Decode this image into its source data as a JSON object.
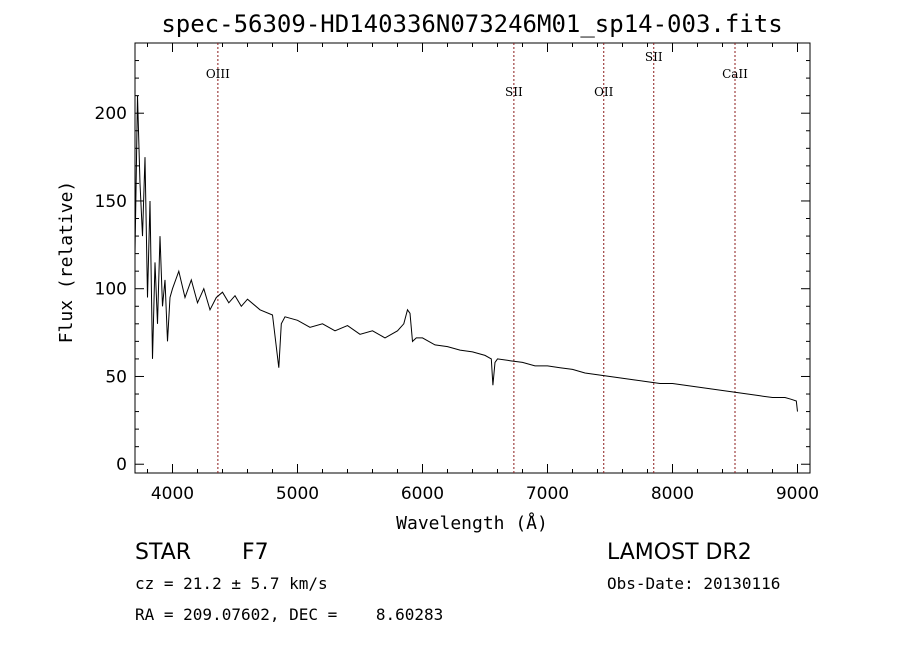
{
  "chart_data": {
    "type": "line",
    "title": "spec-56309-HD140336N073246M01_sp14-003.fits",
    "xlabel": "Wavelength (Å)",
    "ylabel": "Flux (relative)",
    "xlim": [
      3700,
      9100
    ],
    "ylim": [
      -5,
      240
    ],
    "xticks": [
      4000,
      5000,
      6000,
      7000,
      8000,
      9000
    ],
    "yticks": [
      0,
      50,
      100,
      150,
      200
    ],
    "series": [
      {
        "name": "flux",
        "x": [
          3700,
          3720,
          3740,
          3760,
          3780,
          3800,
          3820,
          3840,
          3860,
          3880,
          3900,
          3920,
          3940,
          3960,
          3980,
          4000,
          4050,
          4100,
          4150,
          4200,
          4250,
          4300,
          4350,
          4400,
          4450,
          4500,
          4550,
          4600,
          4700,
          4800,
          4850,
          4870,
          4900,
          5000,
          5100,
          5200,
          5300,
          5400,
          5500,
          5600,
          5700,
          5800,
          5850,
          5880,
          5900,
          5920,
          5950,
          6000,
          6100,
          6200,
          6300,
          6400,
          6500,
          6550,
          6563,
          6580,
          6600,
          6700,
          6800,
          6900,
          7000,
          7100,
          7200,
          7300,
          7400,
          7500,
          7600,
          7700,
          7800,
          7900,
          8000,
          8100,
          8200,
          8300,
          8400,
          8500,
          8600,
          8700,
          8800,
          8900,
          8950,
          8990,
          9000
        ],
        "y": [
          120,
          210,
          160,
          130,
          175,
          95,
          150,
          60,
          115,
          80,
          130,
          90,
          105,
          70,
          95,
          100,
          110,
          95,
          105,
          92,
          100,
          88,
          95,
          98,
          92,
          96,
          90,
          94,
          88,
          85,
          55,
          80,
          84,
          82,
          78,
          80,
          76,
          79,
          74,
          76,
          72,
          76,
          80,
          88,
          86,
          70,
          72,
          72,
          68,
          67,
          65,
          64,
          62,
          60,
          45,
          58,
          60,
          59,
          58,
          56,
          56,
          55,
          54,
          52,
          51,
          50,
          49,
          48,
          47,
          46,
          46,
          45,
          44,
          43,
          42,
          41,
          40,
          39,
          38,
          38,
          37,
          36,
          30
        ]
      }
    ],
    "lines": [
      {
        "label": "OIII",
        "x": 4363
      },
      {
        "label": "SII",
        "x": 6731
      },
      {
        "label": "OII",
        "x": 7450
      },
      {
        "label": "SII",
        "x": 7850
      },
      {
        "label": "CaII",
        "x": 8500
      }
    ],
    "line_color": "#8b1a1a"
  },
  "info": {
    "class": "STAR",
    "subclass": "F7",
    "survey": "LAMOST DR2",
    "cz": "cz = 21.2 ± 5.7 km/s",
    "obs_date": "Obs-Date: 20130116",
    "radec": "RA = 209.07602, DEC =    8.60283"
  }
}
